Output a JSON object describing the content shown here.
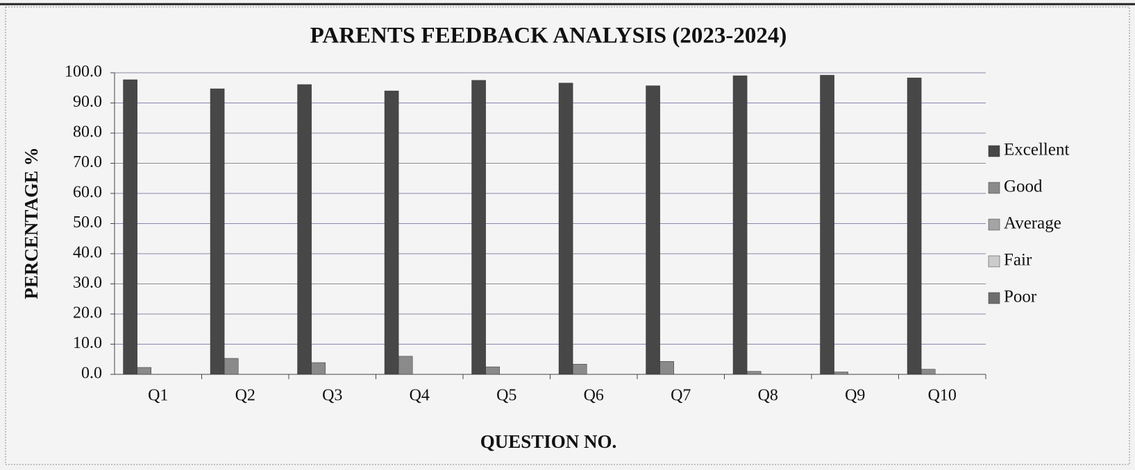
{
  "chart_data": {
    "type": "bar",
    "title": "PARENTS FEEDBACK ANALYSIS (2023-2024)",
    "x_label": "QUESTION NO.",
    "y_label": "PERCENTAGE %",
    "categories": [
      "Q1",
      "Q2",
      "Q3",
      "Q4",
      "Q5",
      "Q6",
      "Q7",
      "Q8",
      "Q9",
      "Q10"
    ],
    "series": [
      {
        "name": "Excellent",
        "color": "#474747",
        "values": [
          97.7,
          94.7,
          96.1,
          94.0,
          97.5,
          96.6,
          95.7,
          99.0,
          99.2,
          98.3
        ]
      },
      {
        "name": "Good",
        "color": "#8a8a8a",
        "values": [
          2.3,
          5.3,
          3.9,
          6.0,
          2.5,
          3.4,
          4.3,
          1.0,
          0.8,
          1.7
        ]
      },
      {
        "name": "Average",
        "color": "#a4a4a4",
        "values": [
          0,
          0,
          0,
          0,
          0,
          0,
          0,
          0,
          0,
          0
        ]
      },
      {
        "name": "Fair",
        "color": "#cccccc",
        "values": [
          0,
          0,
          0,
          0,
          0,
          0,
          0,
          0,
          0,
          0
        ]
      },
      {
        "name": "Poor",
        "color": "#6e6e6e",
        "values": [
          0,
          0,
          0,
          0,
          0,
          0,
          0,
          0,
          0,
          0
        ]
      }
    ],
    "ylim": [
      0,
      100
    ],
    "yticks": [
      {
        "value": 0,
        "label": "0.0"
      },
      {
        "value": 10,
        "label": "10.0"
      },
      {
        "value": 20,
        "label": "20.0"
      },
      {
        "value": 30,
        "label": "30.0"
      },
      {
        "value": 40,
        "label": "40.0"
      },
      {
        "value": 50,
        "label": "50.0"
      },
      {
        "value": 60,
        "label": "60.0"
      },
      {
        "value": 70,
        "label": "70.0"
      },
      {
        "value": 80,
        "label": "80.0"
      },
      {
        "value": 90,
        "label": "90.0"
      },
      {
        "value": 100,
        "label": "100.0"
      }
    ],
    "grid": true,
    "legend": "right"
  }
}
